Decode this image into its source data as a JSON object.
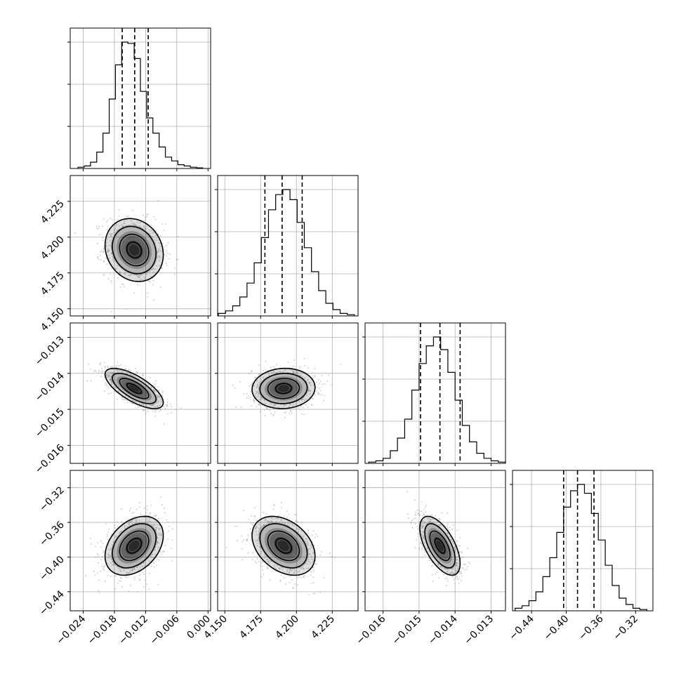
{
  "chart_data": {
    "type": "corner",
    "parameters": [
      {
        "xticks": [
          "−0.024",
          "−0.018",
          "−0.012",
          "−0.006",
          "0.000"
        ],
        "xtick_values": [
          -0.024,
          -0.018,
          -0.012,
          -0.006,
          0.0
        ],
        "range": [
          -0.0265,
          0.0005
        ],
        "quantiles": [
          -0.0165,
          -0.0141,
          -0.0115
        ],
        "hist_x": [
          -0.0244,
          -0.0232,
          -0.022,
          -0.0208,
          -0.0196,
          -0.0184,
          -0.0172,
          -0.016,
          -0.0148,
          -0.0136,
          -0.0124,
          -0.0112,
          -0.01,
          -0.0088,
          -0.0076,
          -0.0064,
          -0.0052,
          -0.004,
          -0.0028,
          -0.0016
        ],
        "hist": [
          0.01,
          0.02,
          0.05,
          0.13,
          0.28,
          0.55,
          0.82,
          1.0,
          0.99,
          0.87,
          0.61,
          0.4,
          0.28,
          0.17,
          0.09,
          0.06,
          0.03,
          0.02,
          0.01,
          0.005
        ]
      },
      {
        "yticks": [
          "4.150",
          "4.175",
          "4.200",
          "4.225"
        ],
        "xticks": [
          "4.150",
          "4.175",
          "4.200",
          "4.225"
        ],
        "tick_values": [
          4.15,
          4.175,
          4.2,
          4.225
        ],
        "range": [
          4.145,
          4.243
        ],
        "quantiles": [
          4.178,
          4.19,
          4.204
        ],
        "hist_x": [
          4.148,
          4.153,
          4.158,
          4.163,
          4.168,
          4.173,
          4.178,
          4.183,
          4.188,
          4.193,
          4.198,
          4.203,
          4.208,
          4.213,
          4.218,
          4.223,
          4.228,
          4.233,
          4.238
        ],
        "hist": [
          0.02,
          0.04,
          0.08,
          0.15,
          0.26,
          0.42,
          0.62,
          0.84,
          0.96,
          1.0,
          0.92,
          0.74,
          0.54,
          0.35,
          0.2,
          0.1,
          0.05,
          0.02,
          0.01
        ]
      },
      {
        "yticks": [
          "−0.016",
          "−0.015",
          "−0.014",
          "−0.013"
        ],
        "xticks": [
          "−0.016",
          "−0.015",
          "−0.014",
          "−0.013"
        ],
        "tick_values": [
          -0.016,
          -0.015,
          -0.014,
          -0.013
        ],
        "range": [
          -0.0165,
          -0.0126
        ],
        "quantiles": [
          -0.01496,
          -0.01442,
          -0.01386
        ],
        "hist_x": [
          -0.0163,
          -0.0161,
          -0.0159,
          -0.0157,
          -0.0155,
          -0.0153,
          -0.0151,
          -0.0149,
          -0.0147,
          -0.0145,
          -0.0143,
          -0.0141,
          -0.0139,
          -0.0137,
          -0.0135,
          -0.0133,
          -0.0131,
          -0.0129,
          -0.0127
        ],
        "hist": [
          0.01,
          0.02,
          0.04,
          0.1,
          0.2,
          0.35,
          0.58,
          0.79,
          0.93,
          1.0,
          0.9,
          0.72,
          0.5,
          0.3,
          0.17,
          0.08,
          0.04,
          0.02,
          0.01
        ]
      },
      {
        "yticks": [
          "−0.44",
          "−0.40",
          "−0.36",
          "−0.32"
        ],
        "xticks": [
          "−0.44",
          "−0.40",
          "−0.36",
          "−0.32"
        ],
        "tick_values": [
          -0.44,
          -0.4,
          -0.36,
          -0.32
        ],
        "range": [
          -0.462,
          -0.3
        ],
        "quantiles": [
          -0.403,
          -0.387,
          -0.368
        ],
        "hist_x": [
          -0.455,
          -0.447,
          -0.439,
          -0.431,
          -0.423,
          -0.415,
          -0.407,
          -0.399,
          -0.391,
          -0.383,
          -0.375,
          -0.367,
          -0.359,
          -0.351,
          -0.343,
          -0.335,
          -0.327,
          -0.319,
          -0.311
        ],
        "hist": [
          0.02,
          0.04,
          0.08,
          0.15,
          0.27,
          0.42,
          0.62,
          0.82,
          0.95,
          1.0,
          0.93,
          0.77,
          0.56,
          0.36,
          0.2,
          0.1,
          0.05,
          0.02,
          0.01
        ]
      }
    ],
    "pairs": [
      {
        "row": 1,
        "col": 0,
        "mean": [
          -0.0142,
          4.191
        ],
        "sigma": [
          0.0028,
          0.011
        ],
        "rho": -0.15
      },
      {
        "row": 2,
        "col": 0,
        "mean": [
          -0.0142,
          -0.01442
        ],
        "sigma": [
          0.0028,
          0.00028
        ],
        "rho": -0.7
      },
      {
        "row": 2,
        "col": 1,
        "mean": [
          4.191,
          -0.01442
        ],
        "sigma": [
          0.011,
          0.00028
        ],
        "rho": 0.05
      },
      {
        "row": 3,
        "col": 0,
        "mean": [
          -0.0142,
          -0.387
        ],
        "sigma": [
          0.0028,
          0.017
        ],
        "rho": 0.35
      },
      {
        "row": 3,
        "col": 1,
        "mean": [
          4.191,
          -0.387
        ],
        "sigma": [
          0.011,
          0.017
        ],
        "rho": -0.35
      },
      {
        "row": 3,
        "col": 2,
        "mean": [
          -0.01442,
          -0.387
        ],
        "sigma": [
          0.00028,
          0.017
        ],
        "rho": -0.6
      }
    ],
    "contour_levels_sigma": [
      0.5,
      1.0,
      1.5,
      2.0
    ],
    "grid": true,
    "colors": {
      "line": "#000000",
      "grid": "#b0b0b0",
      "points": "#999999",
      "density": "#000000"
    }
  }
}
